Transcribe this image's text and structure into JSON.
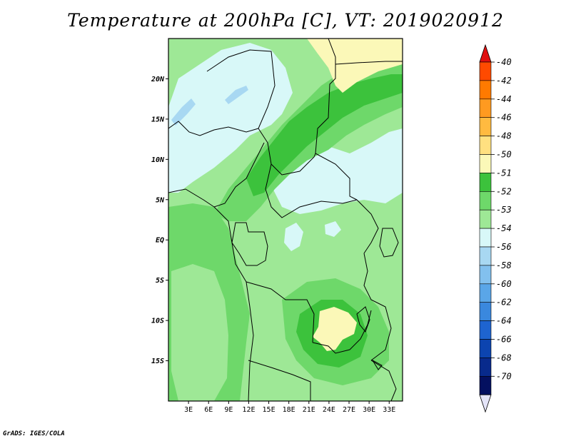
{
  "title": "Temperature at 200hPa [C], VT: 2019020912",
  "credit": "GrADS: IGES/COLA",
  "chart_data": {
    "type": "heatmap",
    "title": "Temperature at 200hPa [C], VT: 2019020912",
    "variable_unit": "C",
    "x_axis": {
      "range": [
        0,
        35
      ],
      "ticks": [
        3,
        6,
        9,
        12,
        15,
        18,
        21,
        24,
        27,
        30,
        33
      ],
      "tick_labels": [
        "3E",
        "6E",
        "9E",
        "12E",
        "15E",
        "18E",
        "21E",
        "24E",
        "27E",
        "30E",
        "33E"
      ]
    },
    "y_axis": {
      "range": [
        -20,
        25
      ],
      "ticks": [
        20,
        15,
        10,
        5,
        0,
        -5,
        -10,
        -15
      ],
      "tick_labels": [
        "20N",
        "15N",
        "10N",
        "5N",
        "EQ",
        "5S",
        "10S",
        "15S"
      ]
    },
    "colorbar": {
      "levels": [
        "-40",
        "-42",
        "-44",
        "-46",
        "-48",
        "-50",
        "-51",
        "-52",
        "-53",
        "-54",
        "-56",
        "-58",
        "-60",
        "-62",
        "-64",
        "-66",
        "-68",
        "-70"
      ],
      "colors": [
        "#e01010",
        "#ff4a00",
        "#ff7a00",
        "#ff9a20",
        "#ffba40",
        "#ffe080",
        "#fbf8b8",
        "#3cc23c",
        "#6ed86a",
        "#9ee896",
        "#d8f8f8",
        "#a8d8f2",
        "#82c0ee",
        "#5aa6e8",
        "#3a88de",
        "#1e64d0",
        "#0c44b0",
        "#082a8c",
        "#041060"
      ],
      "top_cap_color": "#e01010",
      "bottom_cap_color": "#e4e4f8"
    },
    "fields": {
      "background": "#9ee896",
      "land_borders_color": "#000000"
    }
  }
}
